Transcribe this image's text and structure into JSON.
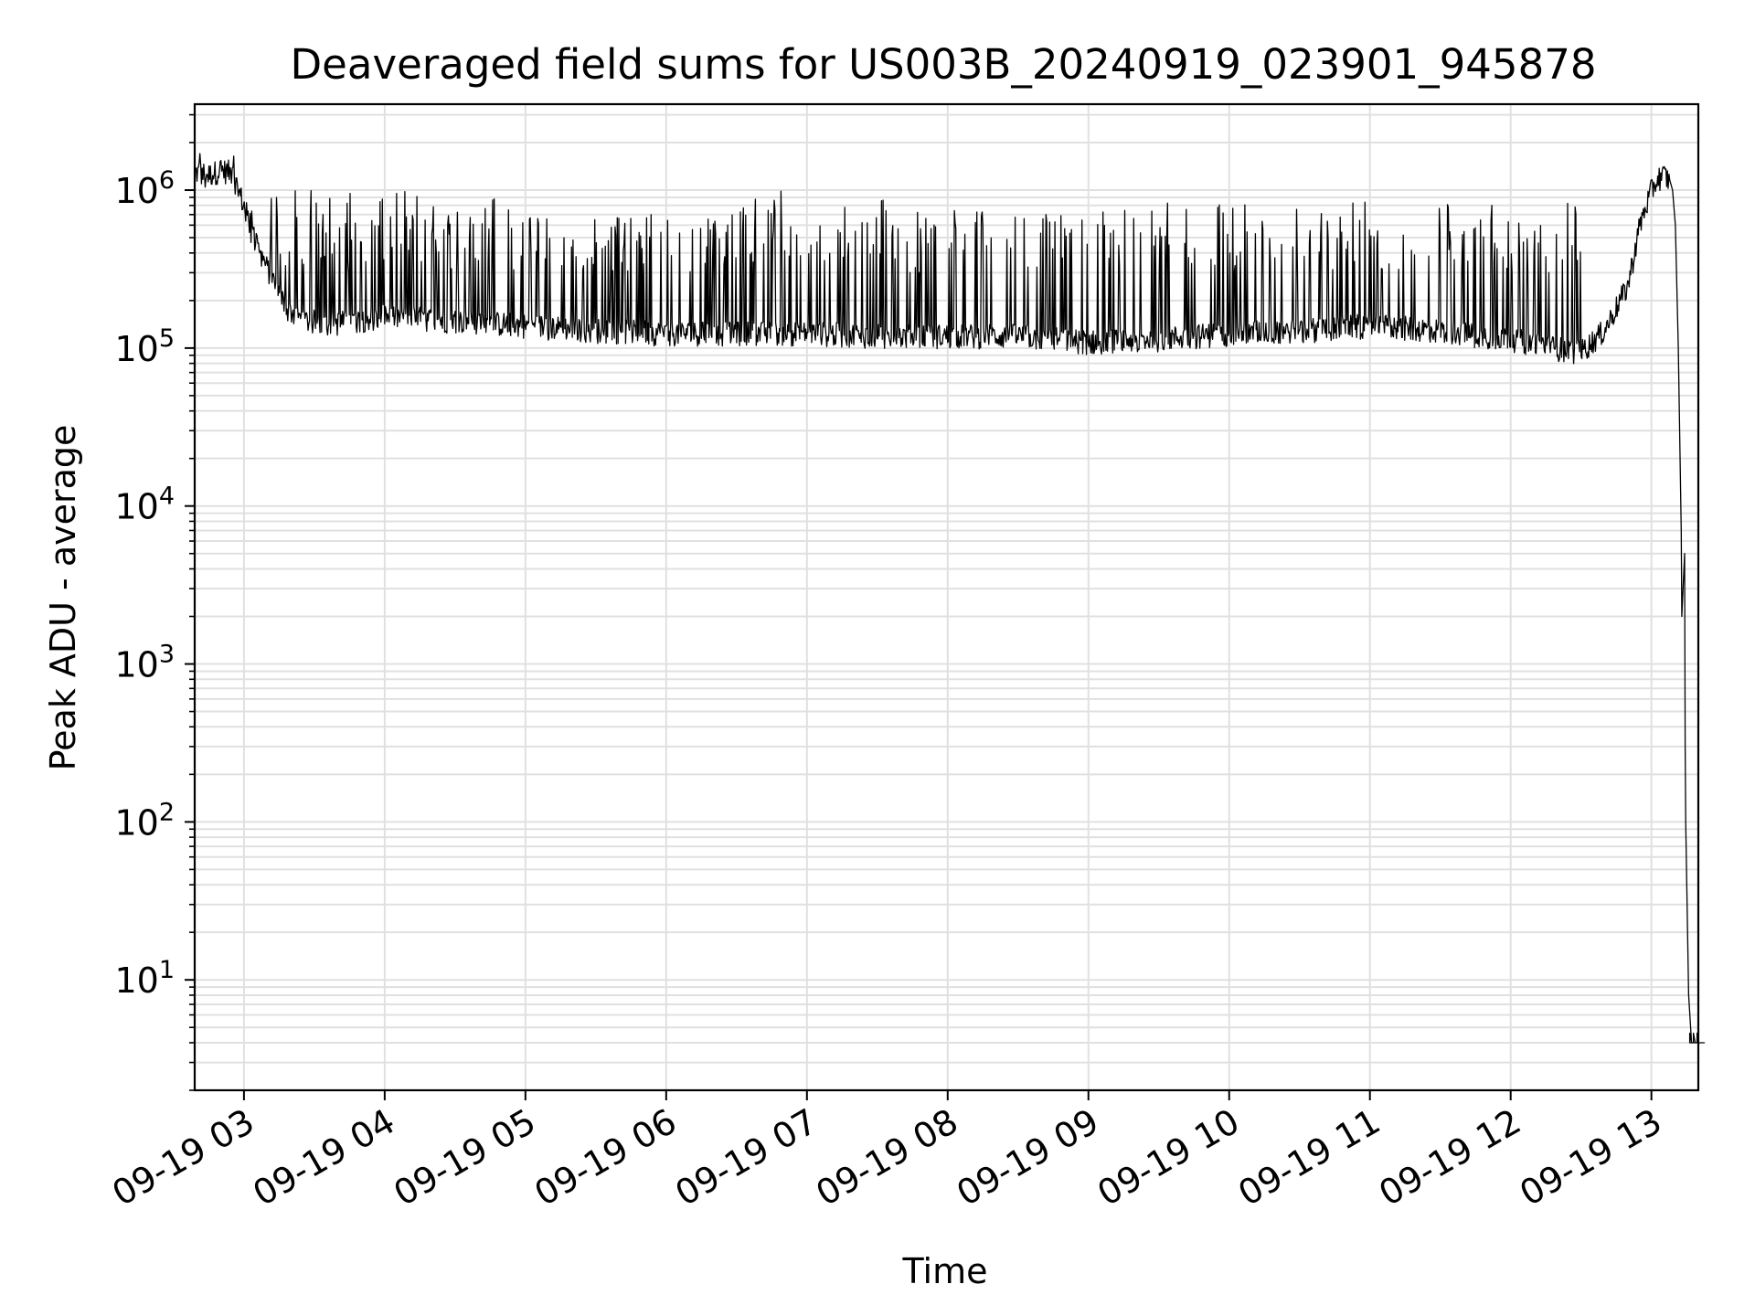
{
  "chart_data": {
    "type": "line",
    "title": "Deaveraged field sums for US003B_20240919_023901_945878",
    "xlabel": "Time",
    "ylabel": "Peak ADU - average",
    "yscale": "log",
    "xlim": [
      "2024-09-19 02:39",
      "2024-09-19 13:20"
    ],
    "ylim": [
      2,
      3500000
    ],
    "grid": true,
    "line_color": "#000000",
    "x_ticks": [
      "09-19 03",
      "09-19 04",
      "09-19 05",
      "09-19 06",
      "09-19 07",
      "09-19 08",
      "09-19 09",
      "09-19 10",
      "09-19 11",
      "09-19 12",
      "09-19 13"
    ],
    "y_ticks": [
      {
        "base": "10",
        "exp": "1",
        "value": 10
      },
      {
        "base": "10",
        "exp": "2",
        "value": 100
      },
      {
        "base": "10",
        "exp": "3",
        "value": 1000
      },
      {
        "base": "10",
        "exp": "4",
        "value": 10000
      },
      {
        "base": "10",
        "exp": "5",
        "value": 100000
      },
      {
        "base": "10",
        "exp": "6",
        "value": 1000000
      }
    ],
    "series": [
      {
        "baseline": {
          "x": [
            "2024-09-19 02:39",
            "2024-09-19 02:45",
            "2024-09-19 02:50",
            "2024-09-19 02:55",
            "2024-09-19 03:00",
            "2024-09-19 03:06",
            "2024-09-19 03:12",
            "2024-09-19 03:18",
            "2024-09-19 03:25",
            "2024-09-19 03:40",
            "2024-09-19 04:00",
            "2024-09-19 04:30",
            "2024-09-19 05:00",
            "2024-09-19 05:30",
            "2024-09-19 06:00",
            "2024-09-19 06:30",
            "2024-09-19 07:00",
            "2024-09-19 07:30",
            "2024-09-19 08:00",
            "2024-09-19 08:30",
            "2024-09-19 09:00",
            "2024-09-19 09:30",
            "2024-09-19 10:00",
            "2024-09-19 10:30",
            "2024-09-19 11:00",
            "2024-09-19 11:30",
            "2024-09-19 12:00",
            "2024-09-19 12:20",
            "2024-09-19 12:30",
            "2024-09-19 12:40",
            "2024-09-19 12:50",
            "2024-09-19 12:55",
            "2024-09-19 13:00",
            "2024-09-19 13:03",
            "2024-09-19 13:06",
            "2024-09-19 13:08"
          ],
          "y": [
            1300000,
            1250000,
            1350000,
            1300000,
            800000,
            420000,
            280000,
            180000,
            150000,
            145000,
            160000,
            150000,
            140000,
            130000,
            125000,
            125000,
            125000,
            120000,
            120000,
            120000,
            110000,
            115000,
            125000,
            130000,
            140000,
            130000,
            115000,
            100000,
            95000,
            130000,
            250000,
            600000,
            1000000,
            1200000,
            1250000,
            1100000
          ]
        },
        "tail": {
          "x": [
            "2024-09-19 13:09",
            "2024-09-19 13:10",
            "2024-09-19 13:11",
            "2024-09-19 13:12",
            "2024-09-19 13:12",
            "2024-09-19 13:13",
            "2024-09-19 13:13",
            "2024-09-19 13:13",
            "2024-09-19 13:14",
            "2024-09-19 13:15",
            "2024-09-19 13:16",
            "2024-09-19 13:20"
          ],
          "y": [
            1000000,
            600000,
            100000,
            7000,
            2000,
            5000,
            300,
            100,
            8,
            4,
            4,
            4
          ]
        },
        "spike_peak_ranges": [
          {
            "from": "2024-09-19 03:10",
            "to": "2024-09-19 05:00",
            "min": 300000,
            "max": 1000000
          },
          {
            "from": "2024-09-19 05:00",
            "to": "2024-09-19 06:30",
            "min": 300000,
            "max": 700000
          },
          {
            "from": "2024-09-19 06:30",
            "to": "2024-09-19 07:40",
            "min": 350000,
            "max": 1000000
          },
          {
            "from": "2024-09-19 07:40",
            "to": "2024-09-19 09:30",
            "min": 300000,
            "max": 750000
          },
          {
            "from": "2024-09-19 09:30",
            "to": "2024-09-19 12:30",
            "min": 300000,
            "max": 850000
          }
        ]
      }
    ]
  }
}
